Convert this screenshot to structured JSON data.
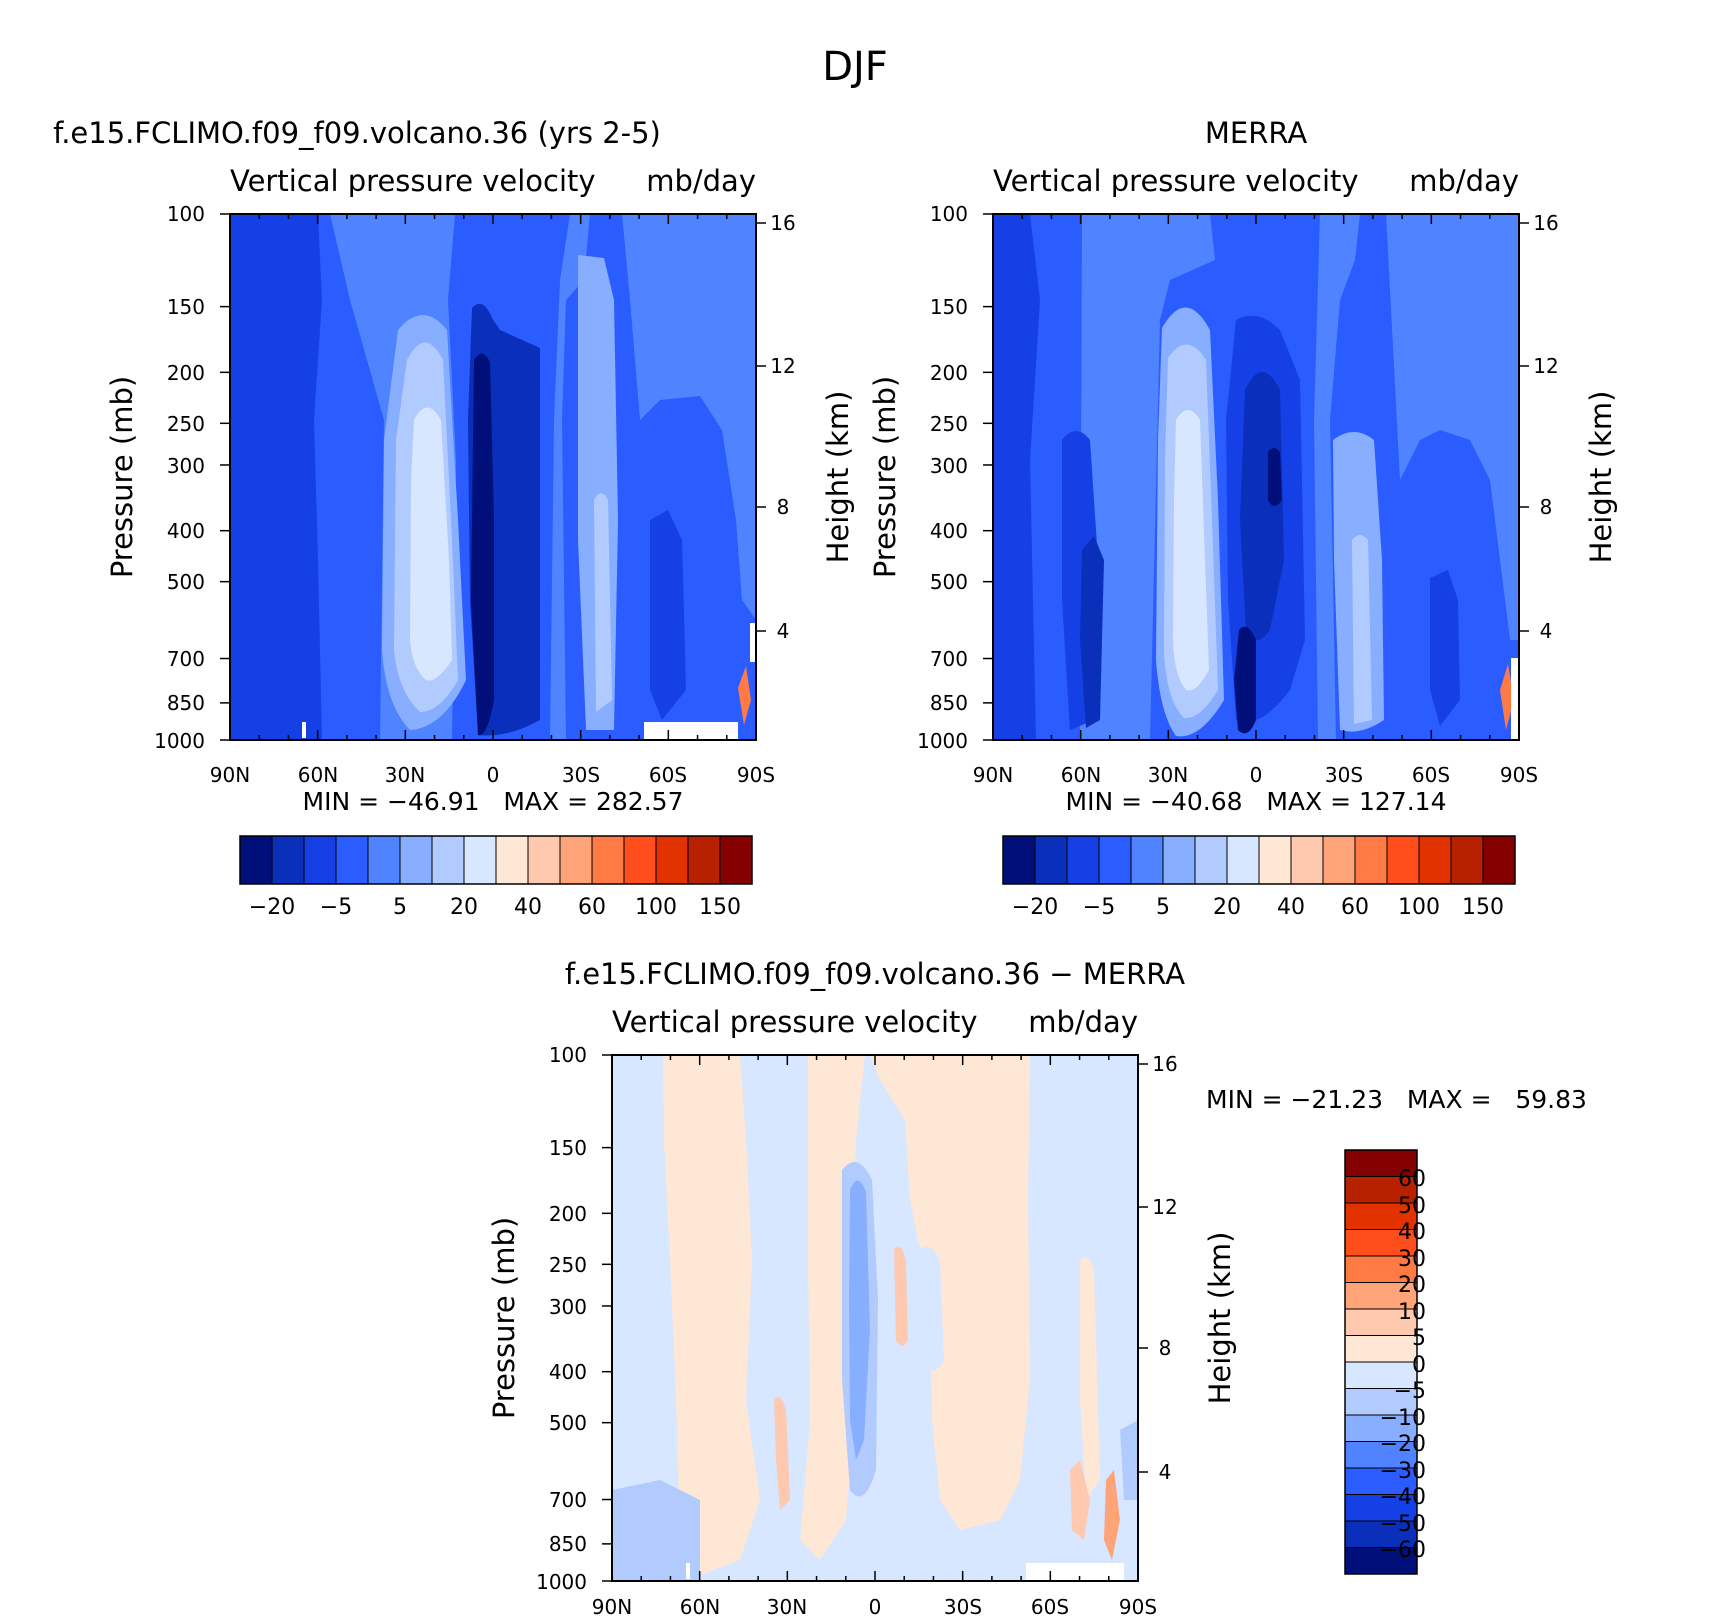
{
  "figure_title": "DJF",
  "chart_data": [
    {
      "type": "heatmap",
      "title": "f.e15.FCLIMO.f09_f09.volcano.36 (yrs 2-5)",
      "subtitle_left": "Vertical pressure velocity",
      "subtitle_right": "mb/day",
      "ylabel": "Pressure (mb)",
      "ylabel_right": "Height (km)",
      "x_ticks": [
        "90N",
        "60N",
        "30N",
        "0",
        "30S",
        "60S",
        "90S"
      ],
      "x_range": [
        90,
        -90
      ],
      "y_ticks": [
        "100",
        "150",
        "200",
        "250",
        "300",
        "400",
        "500",
        "700",
        "850",
        "1000"
      ],
      "y_ticks_right": [
        "16",
        "12",
        "8",
        "4"
      ],
      "y_range": [
        100,
        1000
      ],
      "y_scale": "log",
      "stats_text": "MIN = −46.91   MAX = 282.57",
      "min": -46.91,
      "max": 282.57,
      "colorbar": {
        "orientation": "horizontal",
        "tick_labels": [
          "−20",
          "−5",
          "5",
          "20",
          "40",
          "60",
          "100",
          "150"
        ],
        "colors": [
          "#000f7a",
          "#0a2fbb",
          "#1540e6",
          "#2a5cff",
          "#4f83ff",
          "#88aeff",
          "#b2cbff",
          "#d6e7ff",
          "#ffe7d6",
          "#ffc9b0",
          "#ffa479",
          "#ff7a45",
          "#ff4e1c",
          "#e23200",
          "#b82100",
          "#850000"
        ]
      },
      "bands_fill_order": [
        "#2a5cff",
        "#1540e6",
        "#4f83ff",
        "#88aeff",
        "#b2cbff",
        "#d6e7ff",
        "#0a2fbb",
        "#000f7a"
      ]
    },
    {
      "type": "heatmap",
      "title": "MERRA",
      "subtitle_left": "Vertical pressure velocity",
      "subtitle_right": "mb/day",
      "ylabel": "Pressure (mb)",
      "ylabel_right": "Height (km)",
      "x_ticks": [
        "90N",
        "60N",
        "30N",
        "0",
        "30S",
        "60S",
        "90S"
      ],
      "x_range": [
        90,
        -90
      ],
      "y_ticks": [
        "100",
        "150",
        "200",
        "250",
        "300",
        "400",
        "500",
        "700",
        "850",
        "1000"
      ],
      "y_ticks_right": [
        "16",
        "12",
        "8",
        "4"
      ],
      "y_range": [
        100,
        1000
      ],
      "y_scale": "log",
      "stats_text": "MIN = −40.68   MAX = 127.14",
      "min": -40.68,
      "max": 127.14,
      "colorbar": {
        "orientation": "horizontal",
        "tick_labels": [
          "−20",
          "−5",
          "5",
          "20",
          "40",
          "60",
          "100",
          "150"
        ],
        "colors": [
          "#000f7a",
          "#0a2fbb",
          "#1540e6",
          "#2a5cff",
          "#4f83ff",
          "#88aeff",
          "#b2cbff",
          "#d6e7ff",
          "#ffe7d6",
          "#ffc9b0",
          "#ffa479",
          "#ff7a45",
          "#ff4e1c",
          "#e23200",
          "#b82100",
          "#850000"
        ]
      }
    },
    {
      "type": "heatmap",
      "title": "f.e15.FCLIMO.f09_f09.volcano.36 − MERRA",
      "subtitle_left": "Vertical pressure velocity",
      "subtitle_right": "mb/day",
      "ylabel": "Pressure (mb)",
      "ylabel_right": "Height (km)",
      "x_ticks": [
        "90N",
        "60N",
        "30N",
        "0",
        "30S",
        "60S",
        "90S"
      ],
      "x_range": [
        90,
        -90
      ],
      "y_ticks": [
        "100",
        "150",
        "200",
        "250",
        "300",
        "400",
        "500",
        "700",
        "850",
        "1000"
      ],
      "y_ticks_right": [
        "16",
        "12",
        "8",
        "4"
      ],
      "y_range": [
        100,
        1000
      ],
      "y_scale": "log",
      "stats_text": "MIN = −21.23   MAX =   59.83",
      "min": -21.23,
      "max": 59.83,
      "colorbar": {
        "orientation": "vertical",
        "tick_labels": [
          "60",
          "50",
          "40",
          "30",
          "20",
          "10",
          "5",
          "0",
          "−5",
          "−10",
          "−20",
          "−30",
          "−40",
          "−50",
          "−60"
        ],
        "colors": [
          "#850000",
          "#b82100",
          "#e23200",
          "#ff4e1c",
          "#ff7a45",
          "#ffa479",
          "#ffc9b0",
          "#ffe7d6",
          "#d6e7ff",
          "#b2cbff",
          "#88aeff",
          "#4f83ff",
          "#2a5cff",
          "#1540e6",
          "#0a2fbb",
          "#000f7a"
        ]
      }
    }
  ]
}
